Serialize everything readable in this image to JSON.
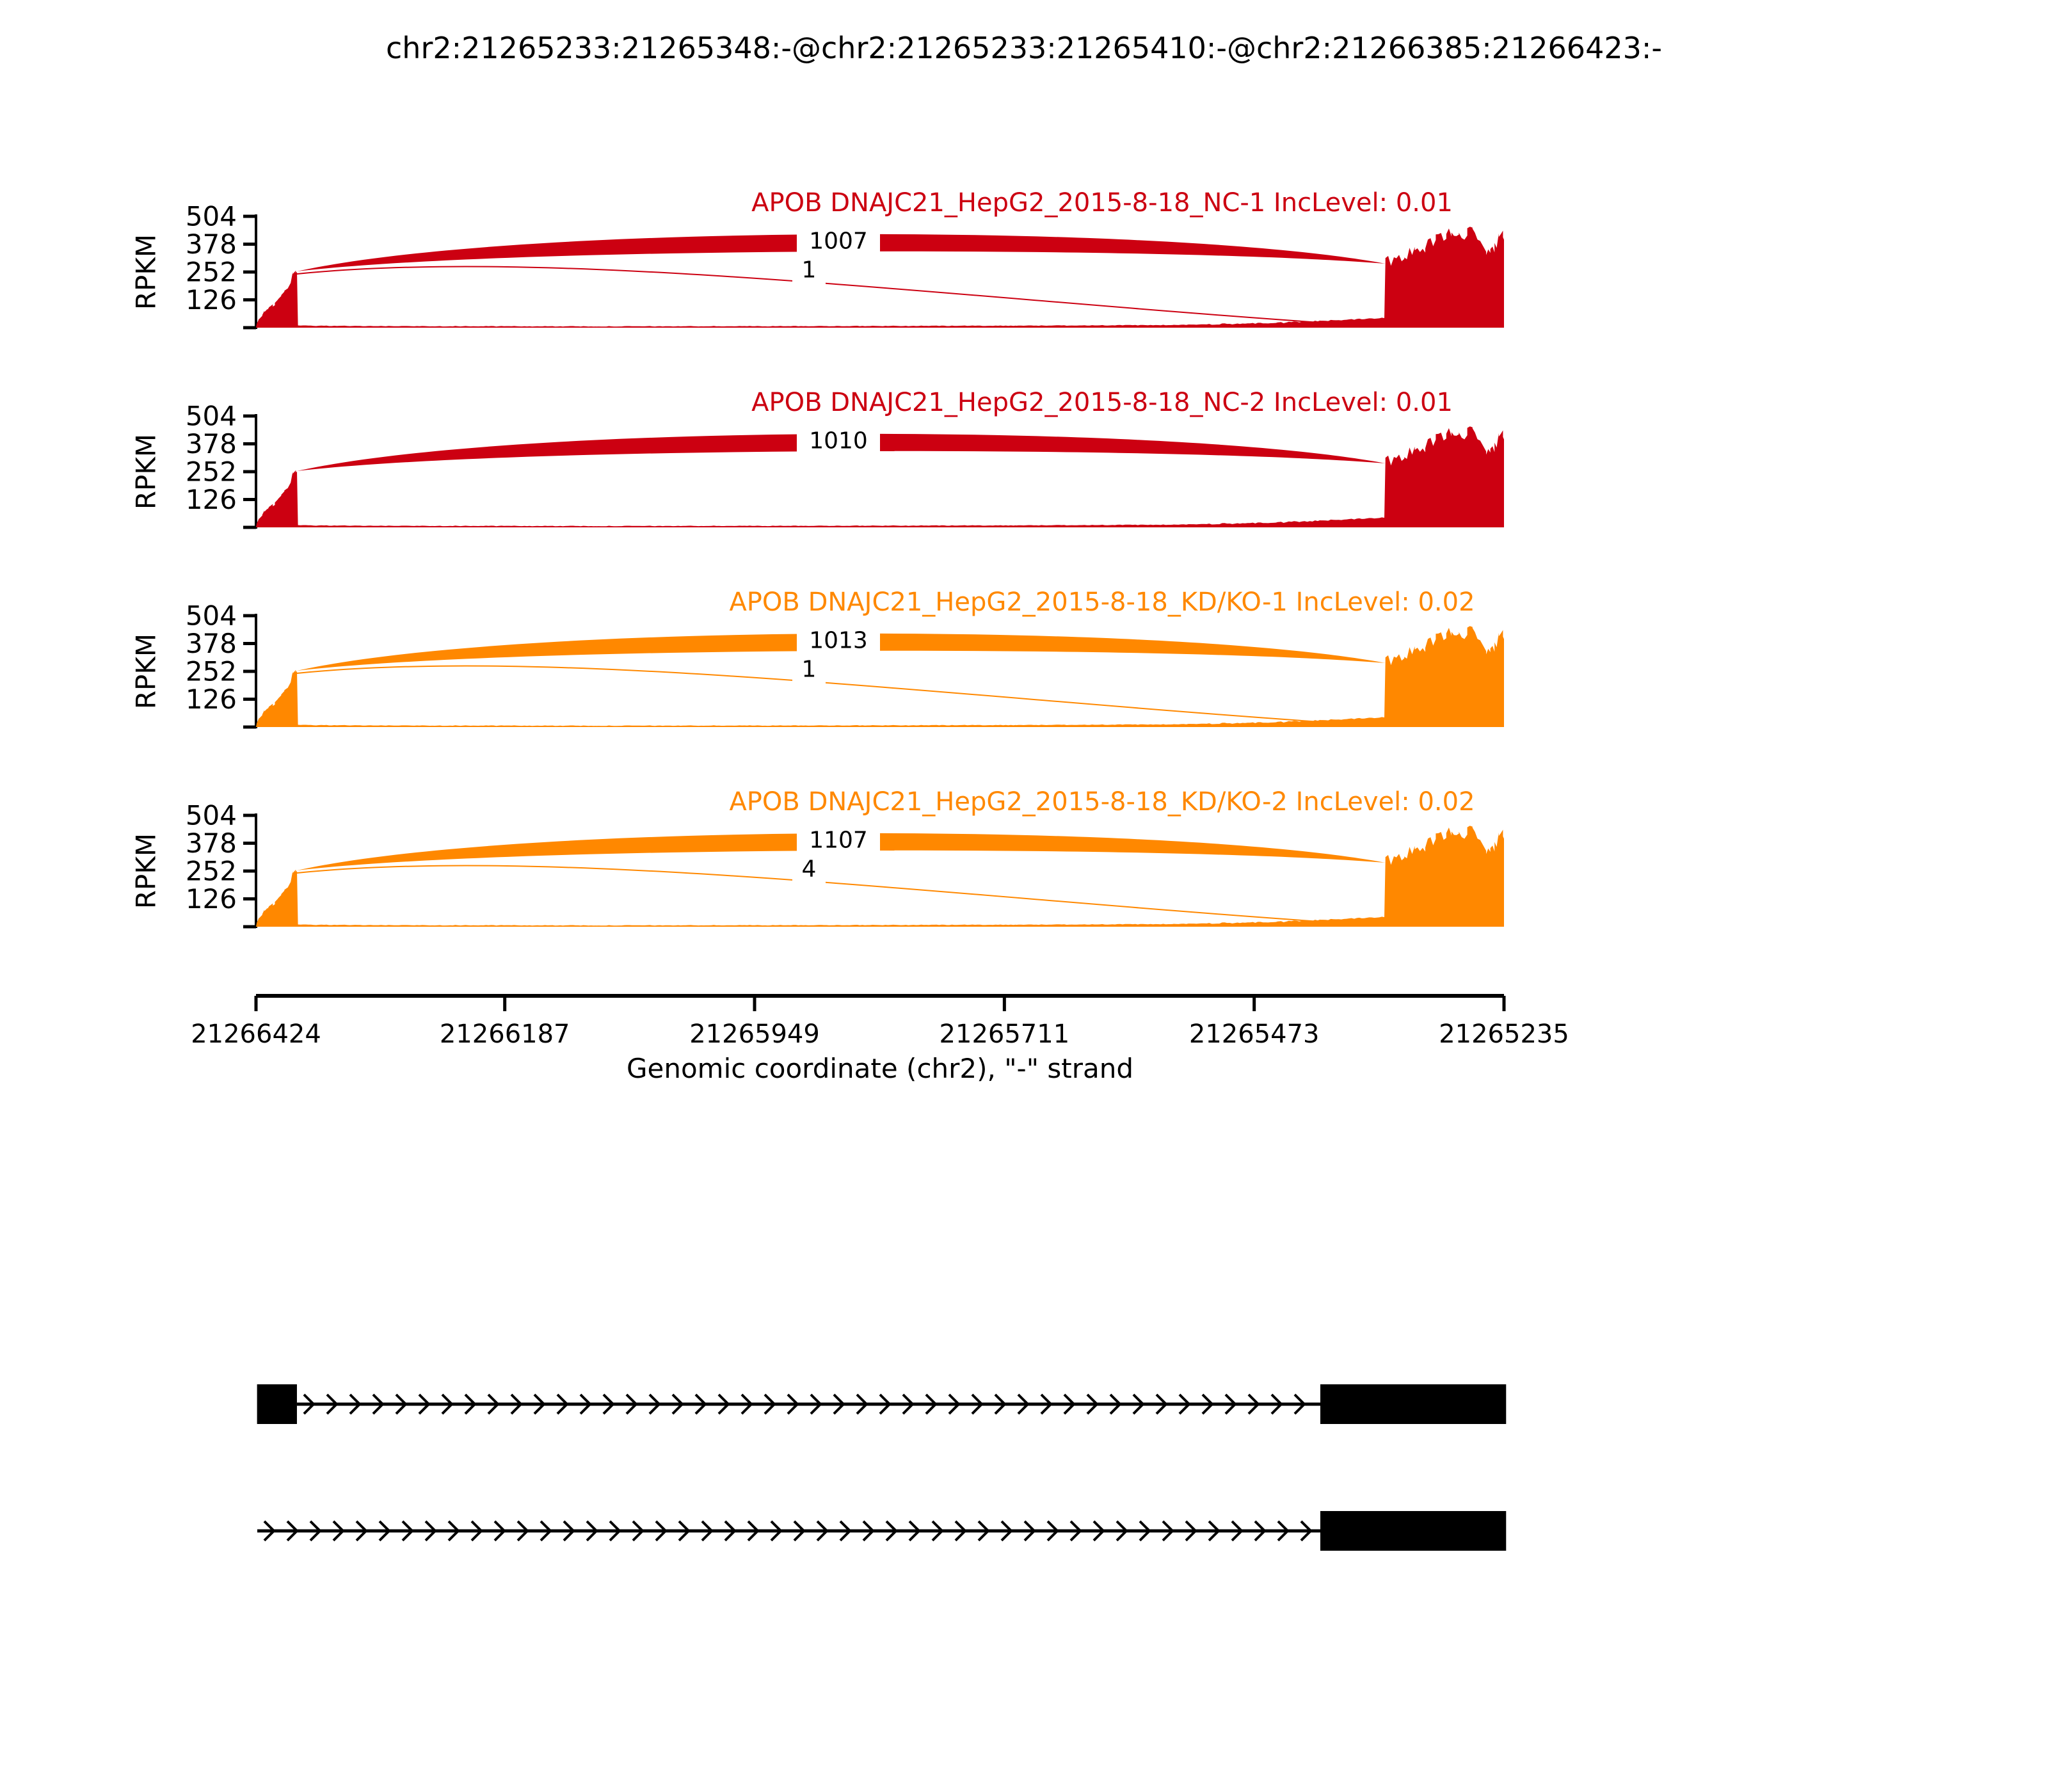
{
  "title": "chr2:21265233:21265348:-@chr2:21265233:21265410:-@chr2:21266385:21266423:-",
  "colors": {
    "group1": "#CC0011",
    "group2": "#FF8800",
    "axis": "#000000",
    "exon": "#000000"
  },
  "chart_data": {
    "type": "sashimi",
    "title": "chr2:21265233:21265348:-@chr2:21265233:21265410:-@chr2:21266385:21266423:-",
    "xlabel": "Genomic coordinate (chr2), \"-\" strand",
    "x_axis": {
      "start": 21266424,
      "end": 21265235,
      "ticks": [
        21266424,
        21266187,
        21265949,
        21265711,
        21265473,
        21265235
      ]
    },
    "y_axis": {
      "label": "RPKM",
      "ticks": [
        126,
        252,
        378,
        504
      ],
      "max": 504
    },
    "tracks": [
      {
        "label": "APOB DNAJC21_HepG2_2015-8-18_NC-1 IncLevel: 0.01",
        "color": "#CC0011",
        "inc_level": 0.01,
        "junctions": [
          {
            "from": 21266385,
            "to": 21265348,
            "count": 1007
          },
          {
            "from": 21266385,
            "to": 21265410,
            "count": 1
          }
        ]
      },
      {
        "label": "APOB DNAJC21_HepG2_2015-8-18_NC-2 IncLevel: 0.01",
        "color": "#CC0011",
        "inc_level": 0.01,
        "junctions": [
          {
            "from": 21266385,
            "to": 21265348,
            "count": 1010
          }
        ]
      },
      {
        "label": "APOB DNAJC21_HepG2_2015-8-18_KD/KO-1 IncLevel: 0.02",
        "color": "#FF8800",
        "inc_level": 0.02,
        "junctions": [
          {
            "from": 21266385,
            "to": 21265348,
            "count": 1013
          },
          {
            "from": 21266385,
            "to": 21265410,
            "count": 1
          }
        ]
      },
      {
        "label": "APOB DNAJC21_HepG2_2015-8-18_KD/KO-2 IncLevel: 0.02",
        "color": "#FF8800",
        "inc_level": 0.02,
        "junctions": [
          {
            "from": 21266385,
            "to": 21265348,
            "count": 1107
          },
          {
            "from": 21266385,
            "to": 21265410,
            "count": 4
          }
        ]
      }
    ],
    "coverage_profile": [
      [
        21266424,
        0
      ],
      [
        21266423,
        20
      ],
      [
        21266421,
        40
      ],
      [
        21266418,
        55
      ],
      [
        21266416,
        70
      ],
      [
        21266413,
        78
      ],
      [
        21266411,
        92
      ],
      [
        21266408,
        100
      ],
      [
        21266406,
        108
      ],
      [
        21266403,
        130
      ],
      [
        21266400,
        148
      ],
      [
        21266397,
        160
      ],
      [
        21266394,
        180
      ],
      [
        21266391,
        205
      ],
      [
        21266389,
        245
      ],
      [
        21266386,
        252
      ],
      [
        21266385,
        248
      ],
      [
        21266384,
        9
      ],
      [
        21266300,
        7
      ],
      [
        21266100,
        6
      ],
      [
        21265900,
        7
      ],
      [
        21265700,
        9
      ],
      [
        21265550,
        12
      ],
      [
        21265450,
        22
      ],
      [
        21265410,
        30
      ],
      [
        21265380,
        38
      ],
      [
        21265349,
        45
      ],
      [
        21265348,
        300
      ],
      [
        21265340,
        315
      ],
      [
        21265330,
        335
      ],
      [
        21265320,
        345
      ],
      [
        21265310,
        365
      ],
      [
        21265300,
        395
      ],
      [
        21265290,
        425
      ],
      [
        21265285,
        430
      ],
      [
        21265278,
        415
      ],
      [
        21265270,
        425
      ],
      [
        21265265,
        435
      ],
      [
        21265258,
        420
      ],
      [
        21265252,
        350
      ],
      [
        21265248,
        330
      ],
      [
        21265244,
        370
      ],
      [
        21265240,
        400
      ],
      [
        21265236,
        410
      ],
      [
        21265235,
        415
      ]
    ],
    "transcripts": [
      {
        "strand": "-",
        "exons": [
          [
            21266423,
            21266385
          ],
          [
            21265410,
            21265233
          ]
        ]
      },
      {
        "strand": "-",
        "exons": [
          [
            21265410,
            21265233
          ]
        ]
      }
    ]
  }
}
